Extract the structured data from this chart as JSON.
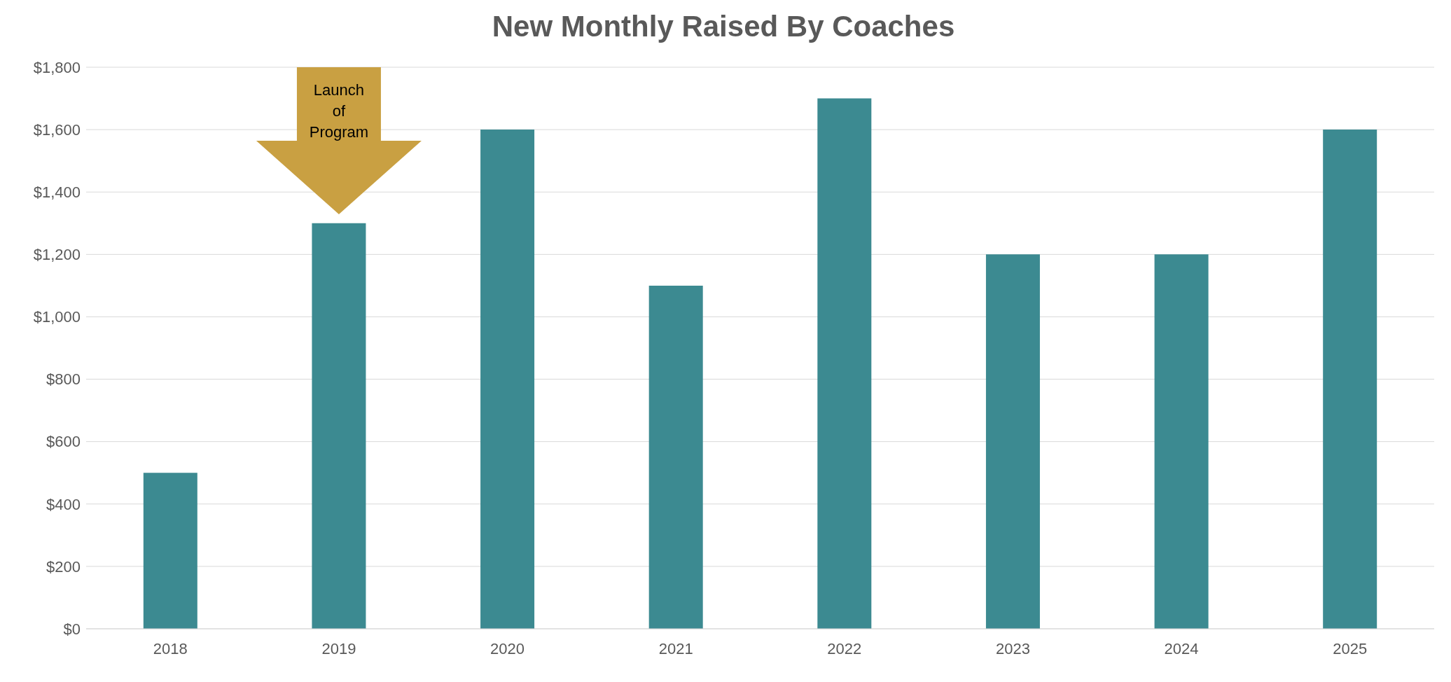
{
  "chart_data": {
    "type": "bar",
    "title": "New Monthly Raised By Coaches",
    "categories": [
      "2018",
      "2019",
      "2020",
      "2021",
      "2022",
      "2023",
      "2024",
      "2025"
    ],
    "values": [
      500,
      1300,
      1600,
      1100,
      1700,
      1200,
      1200,
      1600
    ],
    "color": "#3c8a91",
    "ylim": [
      0,
      1800
    ],
    "yticks": [
      {
        "value": 0,
        "label": "$0"
      },
      {
        "value": 200,
        "label": "$200"
      },
      {
        "value": 400,
        "label": "$400"
      },
      {
        "value": 600,
        "label": "$600"
      },
      {
        "value": 800,
        "label": "$800"
      },
      {
        "value": 1000,
        "label": "$1,000"
      },
      {
        "value": 1200,
        "label": "$1,200"
      },
      {
        "value": 1400,
        "label": "$1,400"
      },
      {
        "value": 1600,
        "label": "$1,600"
      },
      {
        "value": 1800,
        "label": "$1,800"
      }
    ],
    "grid": "y",
    "annotations": [
      "Launch of Program"
    ]
  }
}
